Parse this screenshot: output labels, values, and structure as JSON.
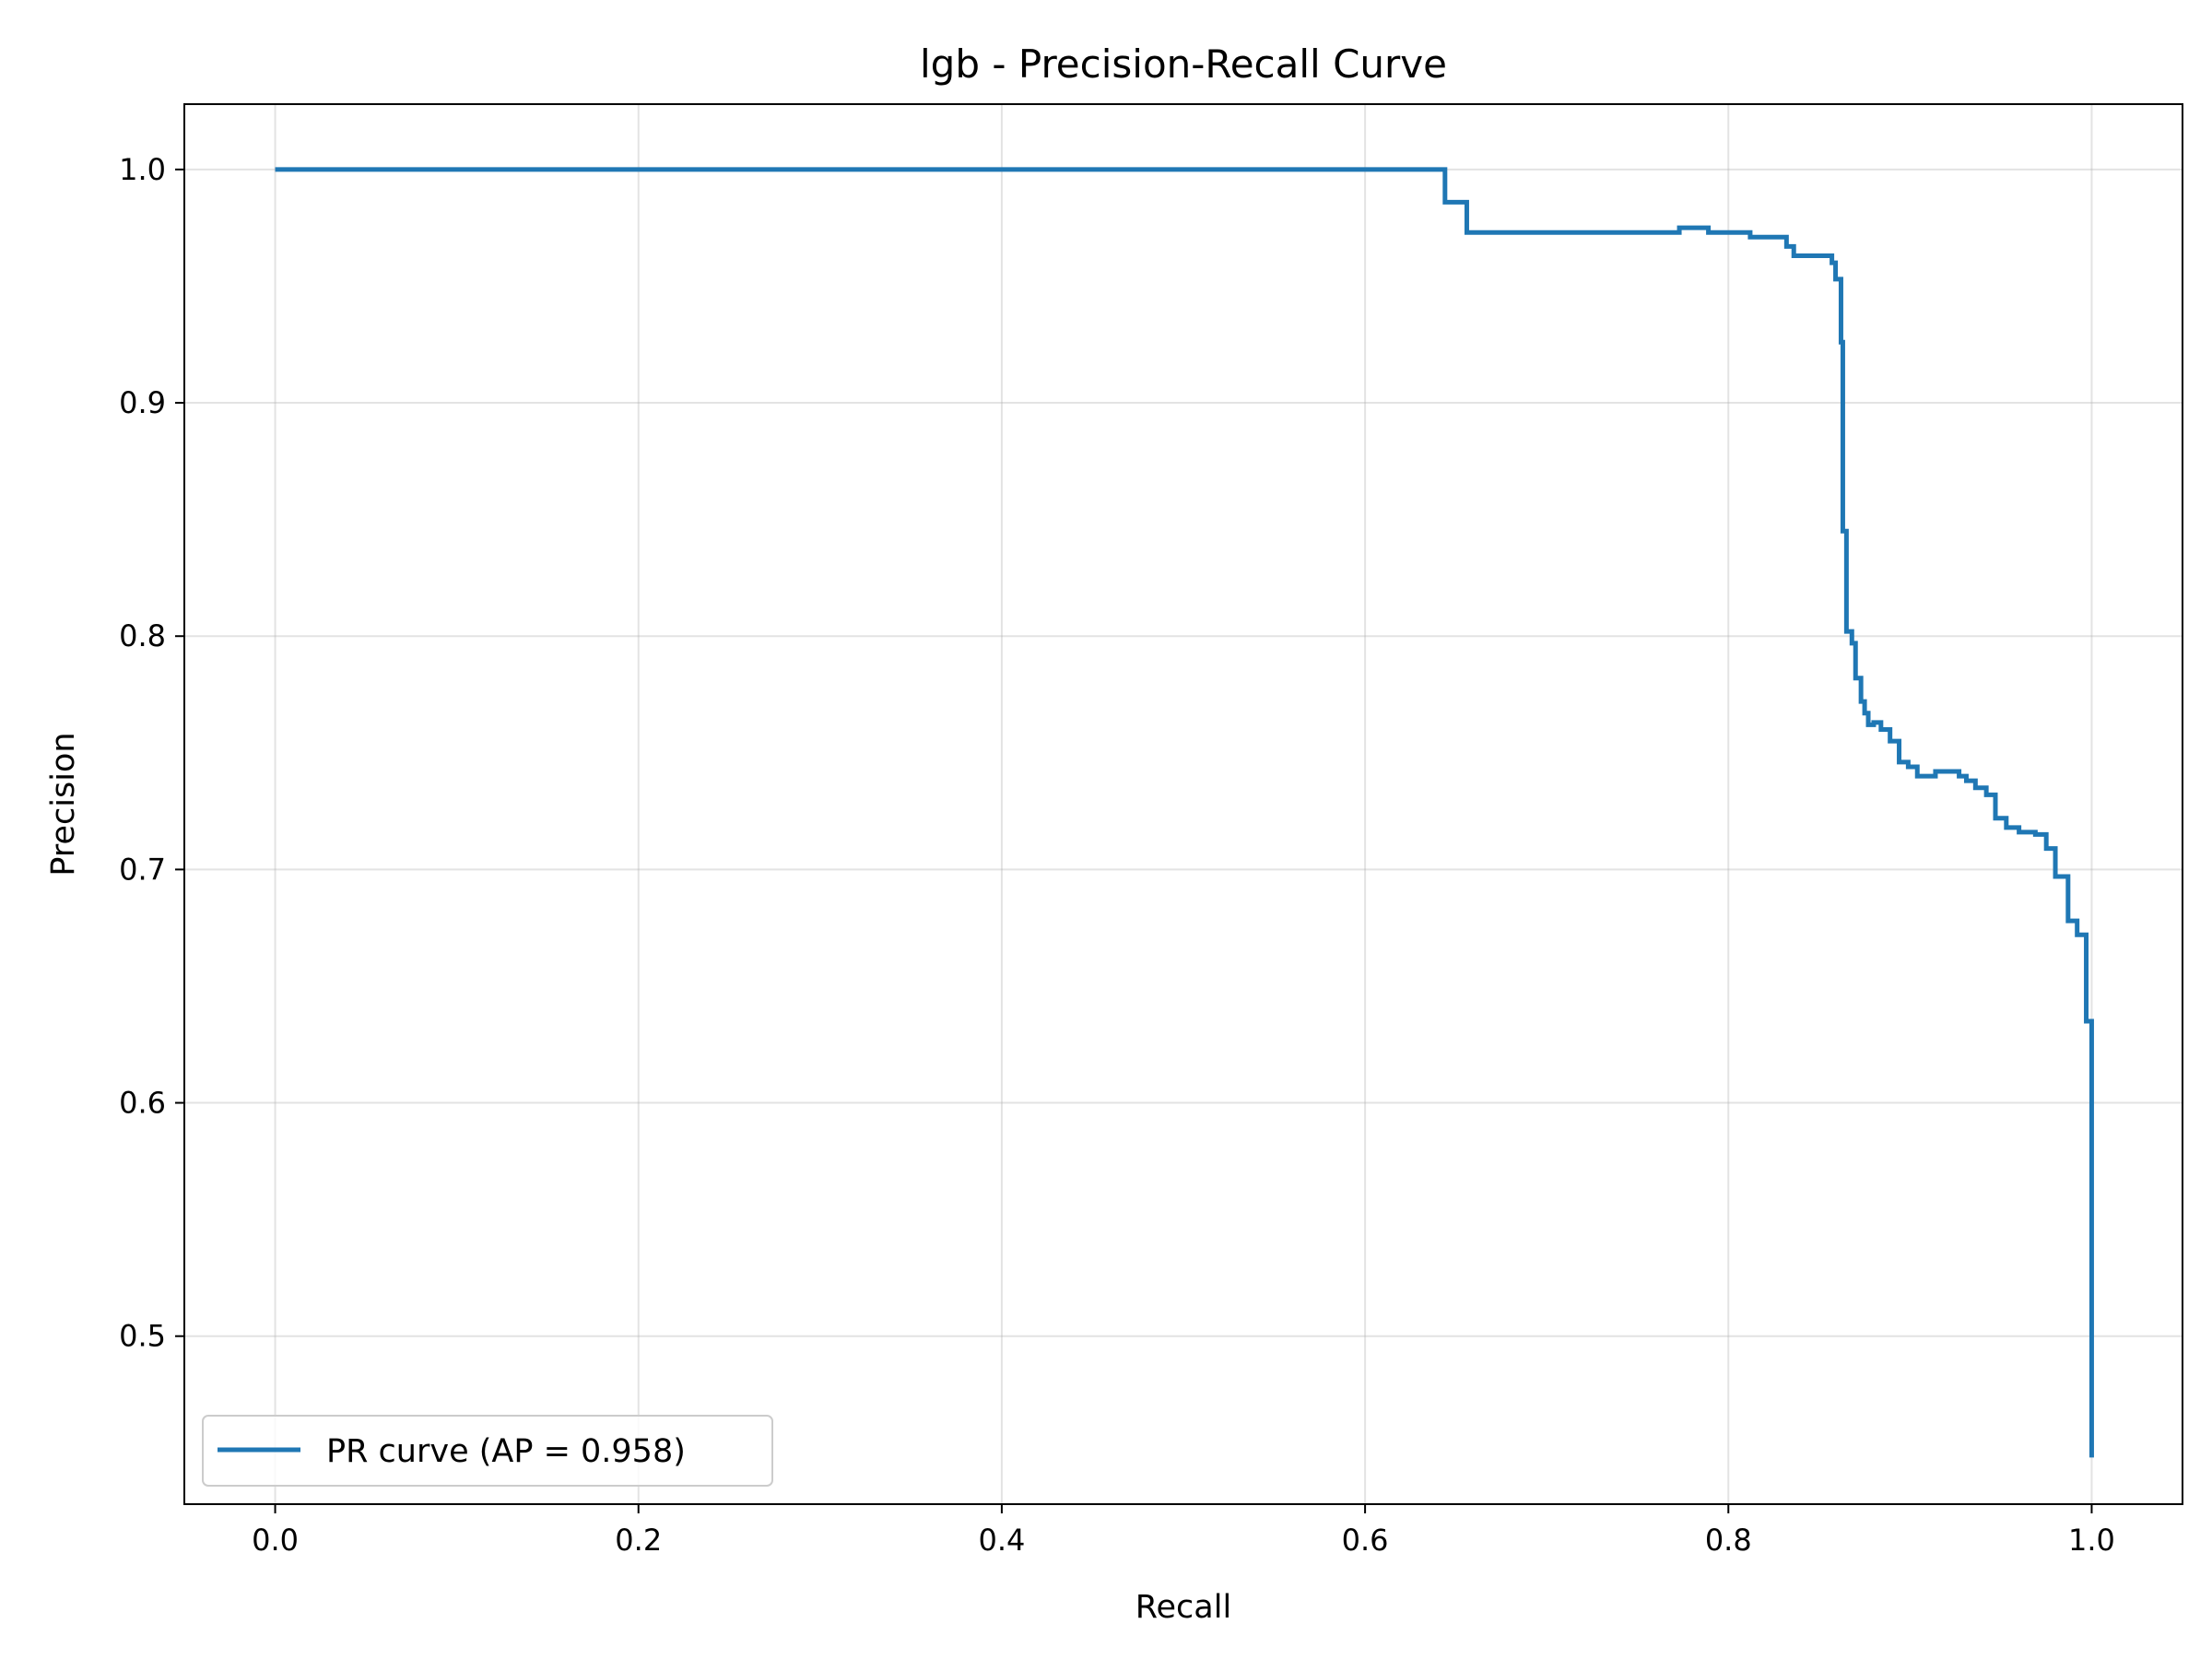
{
  "chart_data": {
    "type": "line",
    "title": "lgb - Precision-Recall Curve",
    "xlabel": "Recall",
    "ylabel": "Precision",
    "xlim": [
      -0.05,
      1.05
    ],
    "ylim": [
      0.428,
      1.028
    ],
    "xticks": [
      0.0,
      0.2,
      0.4,
      0.6,
      0.8,
      1.0
    ],
    "xtick_labels": [
      "0.0",
      "0.2",
      "0.4",
      "0.6",
      "0.8",
      "1.0"
    ],
    "yticks": [
      0.5,
      0.6,
      0.7,
      0.8,
      0.9,
      1.0
    ],
    "ytick_labels": [
      "0.5",
      "0.6",
      "0.7",
      "0.8",
      "0.9",
      "1.0"
    ],
    "grid": true,
    "legend_position": "lower-left",
    "series": [
      {
        "name": "PR curve (AP = 0.958)",
        "color": "#1f77b4",
        "step": "post",
        "x": [
          0.0,
          0.644,
          0.656,
          0.773,
          0.789,
          0.812,
          0.832,
          0.836,
          0.857,
          0.859,
          0.862,
          0.863,
          0.865,
          0.868,
          0.87,
          0.873,
          0.875,
          0.877,
          0.88,
          0.884,
          0.889,
          0.894,
          0.899,
          0.904,
          0.914,
          0.927,
          0.931,
          0.936,
          0.942,
          0.947,
          0.953,
          0.96,
          0.969,
          0.975,
          0.98,
          0.987,
          0.992,
          0.997,
          1.0,
          1.0
        ],
        "y": [
          1.0,
          0.986,
          0.973,
          0.975,
          0.973,
          0.971,
          0.967,
          0.963,
          0.96,
          0.953,
          0.926,
          0.845,
          0.802,
          0.797,
          0.782,
          0.772,
          0.767,
          0.762,
          0.763,
          0.76,
          0.755,
          0.746,
          0.744,
          0.74,
          0.742,
          0.74,
          0.738,
          0.735,
          0.732,
          0.722,
          0.718,
          0.716,
          0.715,
          0.709,
          0.697,
          0.678,
          0.672,
          0.635,
          0.635,
          0.448
        ]
      }
    ]
  }
}
